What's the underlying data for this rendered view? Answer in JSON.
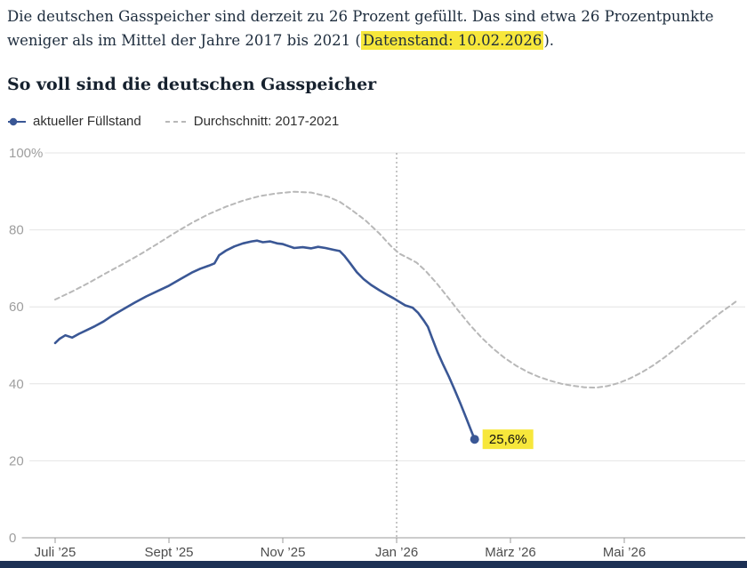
{
  "intro": {
    "line1": "Die deutschen Gasspeicher sind derzeit zu 26 Prozent gefüllt. Das sind etwa 26 Prozentpunkte",
    "line2_prefix": "weniger als im Mittel der Jahre 2017 bis 2021 (",
    "highlight": "Datenstand: 10.02.2026",
    "line2_suffix": ")."
  },
  "title": "So voll sind die deutschen Gasspeicher",
  "theme": {
    "accent_blue": "#3a5795",
    "gray_dashed": "#b8b8b8",
    "highlight_yellow": "#f7e73b",
    "footer_bar_navy": "#1c3054",
    "text_dark": "#1d2c3d"
  },
  "chart_data": {
    "type": "line",
    "title": "So voll sind die deutschen Gasspeicher",
    "x_unit": "months since 2025-07-01",
    "xlim": [
      0,
      12
    ],
    "ylim": [
      0,
      100
    ],
    "grid": "horizontal",
    "legend_position": "top",
    "colors": {
      "grid": "#e4e4e4",
      "axis": "#9a9a9a",
      "y_label": "#9e9e9e",
      "x_label": "#4d4d4d",
      "marker": "#8d8d8d",
      "highlight": "#f7e73b"
    },
    "y_ticks": [
      {
        "value": 100,
        "label": "100%"
      },
      {
        "value": 80,
        "label": "80"
      },
      {
        "value": 60,
        "label": "60"
      },
      {
        "value": 40,
        "label": "40"
      },
      {
        "value": 20,
        "label": "20"
      },
      {
        "value": 0,
        "label": "0"
      }
    ],
    "x_ticks": [
      {
        "t": 0,
        "label": "Juli ’25"
      },
      {
        "t": 2,
        "label": "Sept ’25"
      },
      {
        "t": 4,
        "label": "Nov ’25"
      },
      {
        "t": 6,
        "label": "Jan ’26"
      },
      {
        "t": 8,
        "label": "März ’26"
      },
      {
        "t": 10,
        "label": "Mai ’26"
      }
    ],
    "marker_line": {
      "t": 6.0
    },
    "annotation": {
      "label": "25,6%"
    },
    "series": [
      {
        "name": "aktueller Füllstand",
        "color": "#3a5795",
        "dash": false,
        "end_marker": true,
        "points": [
          [
            0,
            50.6
          ],
          [
            0.08,
            51.7
          ],
          [
            0.18,
            52.6
          ],
          [
            0.3,
            52.0
          ],
          [
            0.42,
            53.0
          ],
          [
            0.55,
            53.9
          ],
          [
            0.7,
            55.0
          ],
          [
            0.85,
            56.2
          ],
          [
            1.0,
            57.7
          ],
          [
            1.2,
            59.4
          ],
          [
            1.4,
            61.1
          ],
          [
            1.6,
            62.7
          ],
          [
            1.8,
            64.1
          ],
          [
            2.0,
            65.5
          ],
          [
            2.2,
            67.2
          ],
          [
            2.4,
            68.9
          ],
          [
            2.55,
            69.9
          ],
          [
            2.7,
            70.7
          ],
          [
            2.8,
            71.3
          ],
          [
            2.88,
            73.4
          ],
          [
            3.0,
            74.6
          ],
          [
            3.15,
            75.7
          ],
          [
            3.3,
            76.5
          ],
          [
            3.45,
            77.0
          ],
          [
            3.55,
            77.2
          ],
          [
            3.65,
            76.8
          ],
          [
            3.78,
            77.0
          ],
          [
            3.9,
            76.5
          ],
          [
            4.0,
            76.3
          ],
          [
            4.1,
            75.8
          ],
          [
            4.2,
            75.3
          ],
          [
            4.35,
            75.5
          ],
          [
            4.5,
            75.2
          ],
          [
            4.62,
            75.6
          ],
          [
            4.75,
            75.3
          ],
          [
            4.9,
            74.8
          ],
          [
            5.0,
            74.5
          ],
          [
            5.08,
            73.3
          ],
          [
            5.18,
            71.4
          ],
          [
            5.3,
            69.0
          ],
          [
            5.42,
            67.2
          ],
          [
            5.55,
            65.7
          ],
          [
            5.7,
            64.3
          ],
          [
            5.85,
            63.0
          ],
          [
            5.95,
            62.2
          ],
          [
            6.05,
            61.3
          ],
          [
            6.15,
            60.4
          ],
          [
            6.28,
            59.8
          ],
          [
            6.38,
            58.4
          ],
          [
            6.48,
            56.4
          ],
          [
            6.55,
            54.8
          ],
          [
            6.62,
            52.0
          ],
          [
            6.72,
            48.2
          ],
          [
            6.82,
            44.9
          ],
          [
            6.92,
            41.8
          ],
          [
            7.02,
            38.4
          ],
          [
            7.12,
            34.9
          ],
          [
            7.22,
            31.2
          ],
          [
            7.3,
            28.2
          ],
          [
            7.37,
            25.6
          ]
        ]
      },
      {
        "name": "Durchschnitt: 2017-2021",
        "color": "#b8b8b8",
        "dash": true,
        "end_marker": false,
        "points": [
          [
            0,
            61.9
          ],
          [
            0.3,
            64.0
          ],
          [
            0.6,
            66.3
          ],
          [
            0.9,
            68.8
          ],
          [
            1.2,
            71.2
          ],
          [
            1.5,
            73.7
          ],
          [
            1.8,
            76.4
          ],
          [
            2.1,
            79.2
          ],
          [
            2.4,
            81.8
          ],
          [
            2.7,
            84.1
          ],
          [
            3.0,
            86.0
          ],
          [
            3.3,
            87.6
          ],
          [
            3.6,
            88.8
          ],
          [
            3.9,
            89.5
          ],
          [
            4.2,
            89.9
          ],
          [
            4.5,
            89.7
          ],
          [
            4.8,
            88.6
          ],
          [
            5.0,
            87.3
          ],
          [
            5.2,
            85.3
          ],
          [
            5.45,
            82.5
          ],
          [
            5.7,
            79.0
          ],
          [
            5.9,
            75.8
          ],
          [
            6.05,
            73.8
          ],
          [
            6.2,
            72.7
          ],
          [
            6.35,
            71.5
          ],
          [
            6.5,
            69.5
          ],
          [
            6.7,
            66.2
          ],
          [
            6.9,
            62.5
          ],
          [
            7.1,
            58.7
          ],
          [
            7.3,
            55.1
          ],
          [
            7.5,
            51.9
          ],
          [
            7.7,
            49.1
          ],
          [
            7.9,
            46.7
          ],
          [
            8.1,
            44.7
          ],
          [
            8.3,
            43.1
          ],
          [
            8.5,
            41.8
          ],
          [
            8.7,
            40.8
          ],
          [
            8.9,
            40.0
          ],
          [
            9.1,
            39.5
          ],
          [
            9.3,
            39.1
          ],
          [
            9.5,
            39.0
          ],
          [
            9.7,
            39.4
          ],
          [
            9.9,
            40.2
          ],
          [
            10.1,
            41.4
          ],
          [
            10.3,
            42.9
          ],
          [
            10.5,
            44.7
          ],
          [
            10.7,
            46.8
          ],
          [
            10.9,
            49.1
          ],
          [
            11.1,
            51.5
          ],
          [
            11.3,
            53.9
          ],
          [
            11.5,
            56.3
          ],
          [
            11.7,
            58.6
          ],
          [
            11.9,
            60.7
          ],
          [
            12.0,
            61.8
          ]
        ]
      }
    ]
  }
}
